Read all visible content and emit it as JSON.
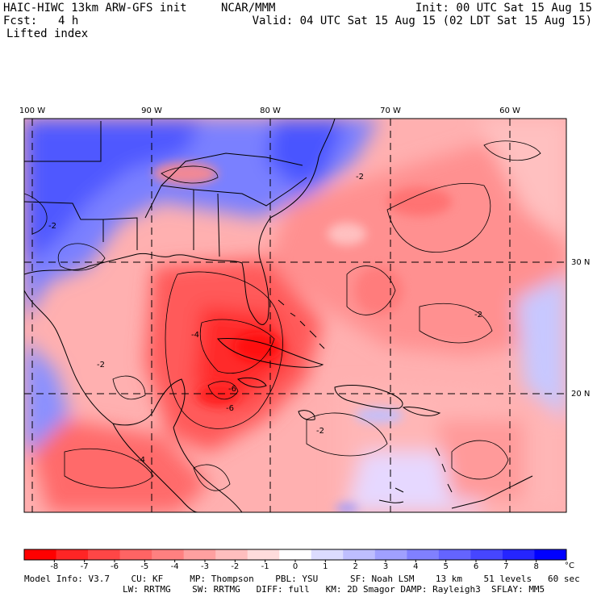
{
  "header": {
    "model": "HAIC-HIWC 13km ARW-GFS init",
    "org": "NCAR/MMM",
    "init": "Init: 00 UTC Sat 15 Aug 15",
    "fcst_label": "Fcst:",
    "fcst_value": "4 h",
    "valid": "Valid: 04 UTC Sat 15 Aug 15 (02 LDT Sat 15 Aug 15)",
    "field": "Lifted index"
  },
  "map": {
    "lon_labels": [
      "100 W",
      "90 W",
      "80 W",
      "70 W",
      "60 W"
    ],
    "lat_labels": [
      "30 N",
      "20 N"
    ],
    "contour_labels": [
      "-2",
      "-2",
      "-4",
      "-6",
      "-6",
      "-2",
      "-4",
      "-2",
      "-2"
    ]
  },
  "colorbar": {
    "ticks": [
      "-8",
      "-7",
      "-6",
      "-5",
      "-4",
      "-3",
      "-2",
      "-1",
      "0",
      "1",
      "2",
      "3",
      "4",
      "5",
      "6",
      "7",
      "8"
    ],
    "unit": "°C",
    "colors": [
      "#ff0000",
      "#ff2525",
      "#ff4646",
      "#ff6464",
      "#ff8080",
      "#ffa0a0",
      "#ffbebe",
      "#ffdcdc",
      "#ffffff",
      "#dcdcff",
      "#bebeff",
      "#a0a0ff",
      "#8080ff",
      "#6464ff",
      "#4646ff",
      "#2525ff",
      "#0000ff"
    ]
  },
  "model_info": {
    "line1": "Model Info: V3.7    CU: KF     MP: Thompson    PBL: YSU      SF: Noah LSM    13 km    51 levels   60 sec",
    "line2": "LW: RRTMG    SW: RRTMG   DIFF: full   KM: 2D Smagor DAMP: Rayleigh3  SFLAY: MM5"
  }
}
